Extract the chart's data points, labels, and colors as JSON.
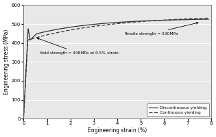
{
  "xlabel": "Engineering strain (%)",
  "ylabel": "Engineering stress (MPa)",
  "ylim": [
    0,
    600
  ],
  "xlim": [
    0,
    8
  ],
  "yticks": [
    0,
    100,
    200,
    300,
    400,
    500,
    600
  ],
  "xticks": [
    0,
    1,
    2,
    3,
    4,
    5,
    6,
    7,
    8
  ],
  "annotation_yield": "Yield strength = 448MPa at 0.5% strain",
  "annotation_tensile": "Tensile strength = 530MPa",
  "legend_discontinuous": "Discontinuous yielding",
  "legend_continuous": "Continuous yielding",
  "line_color": "#333333",
  "bg_color": "#e8e8e8"
}
